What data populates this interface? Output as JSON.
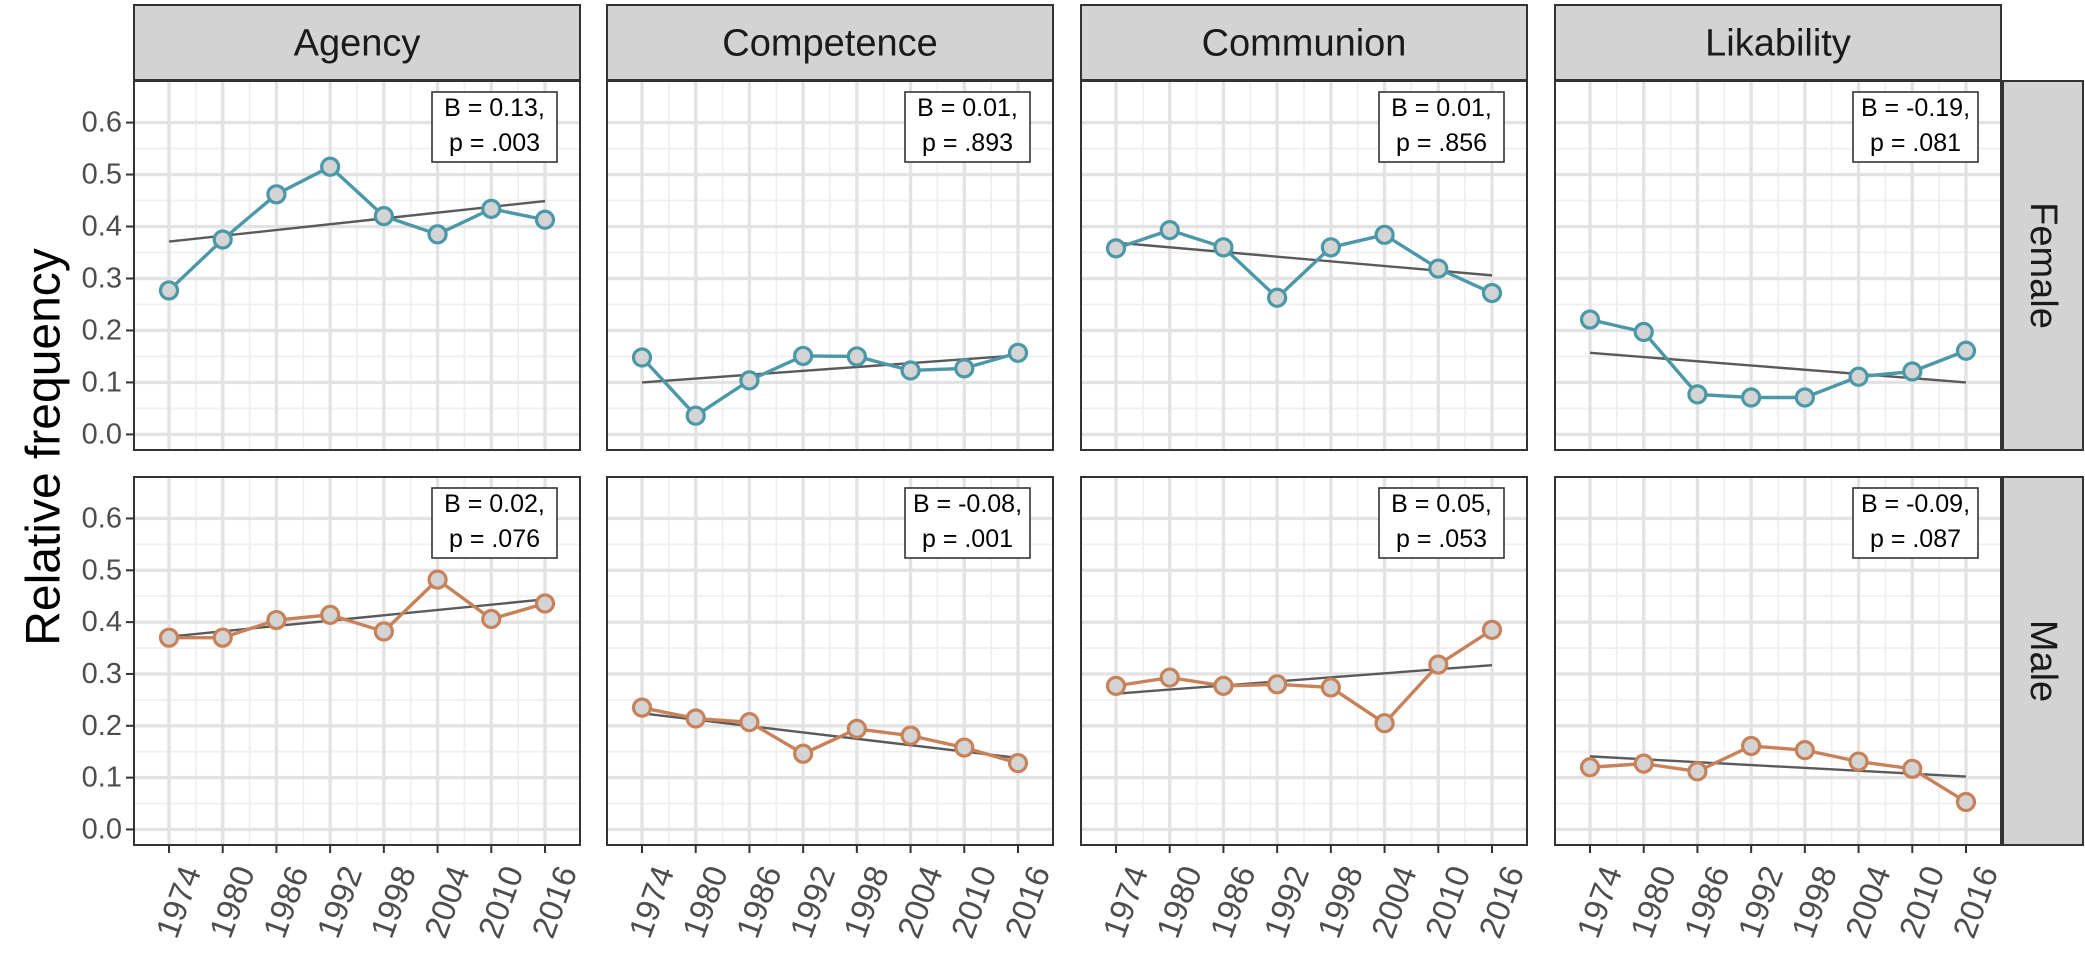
{
  "chart_data": {
    "type": "line",
    "ylabel": "Relative frequency",
    "xlabel": "",
    "years": [
      "1974",
      "1980",
      "1986",
      "1992",
      "1998",
      "2004",
      "2010",
      "2016"
    ],
    "yticks": [
      "0.0",
      "0.1",
      "0.2",
      "0.3",
      "0.4",
      "0.5",
      "0.6"
    ],
    "ylim": [
      -0.03,
      0.68
    ],
    "columns": [
      "Agency",
      "Competence",
      "Communion",
      "Likability"
    ],
    "rows": [
      "Female",
      "Male"
    ],
    "colors": {
      "Female": "#4a98a8",
      "Male": "#c8825a",
      "point_fill": "#d4d4d4",
      "trend": "#5a5a5a"
    },
    "panels": [
      {
        "row": "Female",
        "column": "Agency",
        "values": [
          0.277,
          0.375,
          0.462,
          0.515,
          0.42,
          0.385,
          0.434,
          0.413
        ],
        "trend": [
          0.371,
          0.449
        ],
        "b_text": "B = 0.13,",
        "p_text": "p = .003"
      },
      {
        "row": "Female",
        "column": "Competence",
        "values": [
          0.148,
          0.036,
          0.104,
          0.151,
          0.15,
          0.123,
          0.127,
          0.157
        ],
        "trend": [
          0.1,
          0.152
        ],
        "b_text": "B = 0.01,",
        "p_text": "p = .893"
      },
      {
        "row": "Female",
        "column": "Communion",
        "values": [
          0.358,
          0.393,
          0.36,
          0.263,
          0.36,
          0.384,
          0.319,
          0.272
        ],
        "trend": [
          0.369,
          0.306
        ],
        "b_text": "B = 0.01,",
        "p_text": "p = .856"
      },
      {
        "row": "Female",
        "column": "Likability",
        "values": [
          0.221,
          0.197,
          0.077,
          0.071,
          0.071,
          0.111,
          0.121,
          0.161
        ],
        "trend": [
          0.157,
          0.1
        ],
        "b_text": "B = -0.19,",
        "p_text": "p = .081"
      },
      {
        "row": "Male",
        "column": "Agency",
        "values": [
          0.37,
          0.37,
          0.404,
          0.414,
          0.382,
          0.482,
          0.406,
          0.436
        ],
        "trend": [
          0.372,
          0.444
        ],
        "b_text": "B = 0.02,",
        "p_text": "p = .076"
      },
      {
        "row": "Male",
        "column": "Competence",
        "values": [
          0.235,
          0.214,
          0.207,
          0.146,
          0.194,
          0.181,
          0.158,
          0.128
        ],
        "trend": [
          0.224,
          0.138
        ],
        "b_text": "B = -0.08,",
        "p_text": "p = .001"
      },
      {
        "row": "Male",
        "column": "Communion",
        "values": [
          0.277,
          0.293,
          0.277,
          0.28,
          0.274,
          0.205,
          0.318,
          0.385
        ],
        "trend": [
          0.262,
          0.317
        ],
        "b_text": "B = 0.05,",
        "p_text": "p = .053"
      },
      {
        "row": "Male",
        "column": "Likability",
        "values": [
          0.12,
          0.127,
          0.112,
          0.161,
          0.153,
          0.131,
          0.117,
          0.053
        ],
        "trend": [
          0.141,
          0.102
        ],
        "b_text": "B = -0.09,",
        "p_text": "p = .087"
      }
    ]
  }
}
